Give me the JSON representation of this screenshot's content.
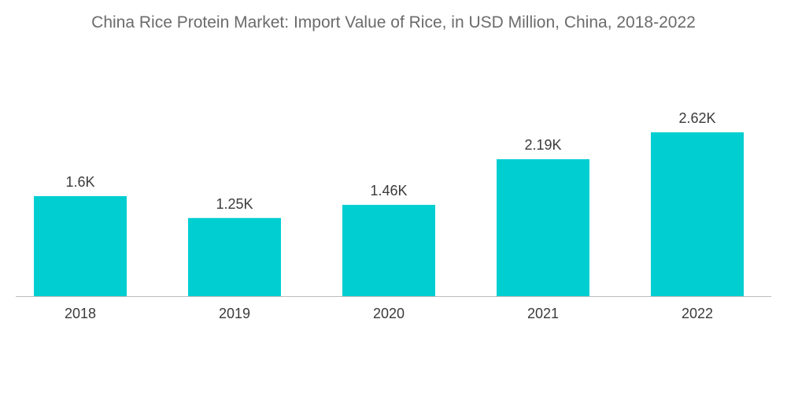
{
  "chart_data": {
    "type": "bar",
    "title": "China Rice Protein Market: Import Value of Rice, in USD Million, China, 2018-2022",
    "categories": [
      "2018",
      "2019",
      "2020",
      "2021",
      "2022"
    ],
    "values": [
      1600,
      1250,
      1460,
      2190,
      2620
    ],
    "value_labels": [
      "1.6K",
      "1.25K",
      "1.46K",
      "2.19K",
      "2.62K"
    ],
    "xlabel": "",
    "ylabel": "",
    "ylim": [
      0,
      2620
    ],
    "grid": false,
    "legend": "none",
    "bar_color": "#00ced1",
    "axis_color": "#bdbdbd"
  }
}
